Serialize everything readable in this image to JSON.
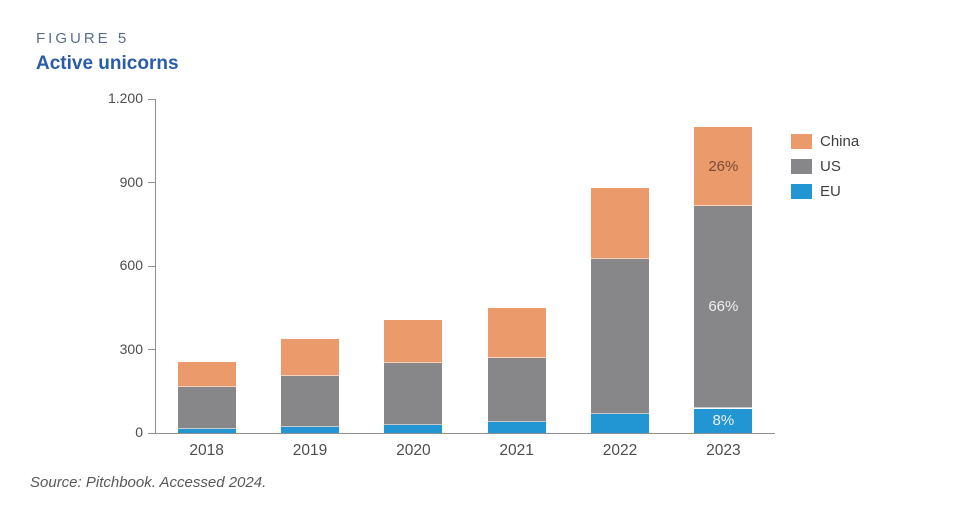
{
  "figure": {
    "label": "FIGURE 5",
    "title": "Active unicorns"
  },
  "source": "Source: Pitchbook. Accessed 2024.",
  "chart_data": {
    "type": "bar",
    "stacked": true,
    "title": "Active unicorns",
    "categories": [
      "2018",
      "2019",
      "2020",
      "2021",
      "2022",
      "2023"
    ],
    "series": [
      {
        "name": "EU",
        "color": "#2196d3",
        "values": [
          15,
          22,
          30,
          38,
          70,
          88
        ]
      },
      {
        "name": "US",
        "color": "#87878a",
        "values": [
          150,
          182,
          222,
          230,
          556,
          726
        ]
      },
      {
        "name": "China",
        "color": "#eb9a6b",
        "values": [
          90,
          132,
          153,
          182,
          254,
          286
        ]
      }
    ],
    "segment_labels": [
      {
        "category": "2023",
        "series": "China",
        "text": "26%",
        "color": "#7c4a35"
      },
      {
        "category": "2023",
        "series": "US",
        "text": "66%",
        "color": "#efefef"
      },
      {
        "category": "2023",
        "series": "EU",
        "text": "8%",
        "color": "#efefef"
      }
    ],
    "ylim": [
      0,
      1200
    ],
    "yticks": [
      {
        "value": 0,
        "label": "0"
      },
      {
        "value": 300,
        "label": "300"
      },
      {
        "value": 600,
        "label": "600"
      },
      {
        "value": 900,
        "label": "900"
      },
      {
        "value": 1200,
        "label": "1.200"
      }
    ],
    "legend": {
      "position": "top-right",
      "items": [
        "China",
        "US",
        "EU"
      ]
    },
    "grid": false
  }
}
